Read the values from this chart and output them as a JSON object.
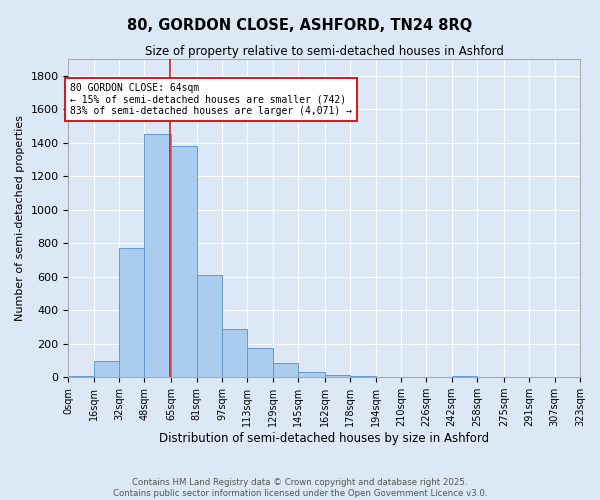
{
  "title": "80, GORDON CLOSE, ASHFORD, TN24 8RQ",
  "subtitle": "Size of property relative to semi-detached houses in Ashford",
  "xlabel": "Distribution of semi-detached houses by size in Ashford",
  "ylabel": "Number of semi-detached properties",
  "bin_edges": [
    0,
    16,
    32,
    48,
    65,
    81,
    97,
    113,
    129,
    145,
    162,
    178,
    194,
    210,
    226,
    242,
    258,
    275,
    291,
    307,
    323
  ],
  "bin_labels": [
    "0sqm",
    "16sqm",
    "32sqm",
    "48sqm",
    "65sqm",
    "81sqm",
    "97sqm",
    "113sqm",
    "129sqm",
    "145sqm",
    "162sqm",
    "178sqm",
    "194sqm",
    "210sqm",
    "226sqm",
    "242sqm",
    "258sqm",
    "275sqm",
    "291sqm",
    "307sqm",
    "323sqm"
  ],
  "bar_heights": [
    5,
    95,
    770,
    1450,
    1380,
    610,
    290,
    175,
    85,
    30,
    15,
    5,
    0,
    0,
    0,
    5,
    0,
    0,
    0,
    0
  ],
  "bar_color": "#aaccee",
  "bar_edge_color": "#6699cc",
  "property_line_x": 64,
  "property_line_color": "#cc2222",
  "annotation_text": "80 GORDON CLOSE: 64sqm\n← 15% of semi-detached houses are smaller (742)\n83% of semi-detached houses are larger (4,071) →",
  "annotation_box_color": "#ffffff",
  "annotation_box_edge_color": "#cc2222",
  "ylim": [
    0,
    1900
  ],
  "yticks": [
    0,
    200,
    400,
    600,
    800,
    1000,
    1200,
    1400,
    1600,
    1800
  ],
  "background_color": "#dce8f5",
  "grid_color": "#ffffff",
  "footer_line1": "Contains HM Land Registry data © Crown copyright and database right 2025.",
  "footer_line2": "Contains public sector information licensed under the Open Government Licence v3.0."
}
